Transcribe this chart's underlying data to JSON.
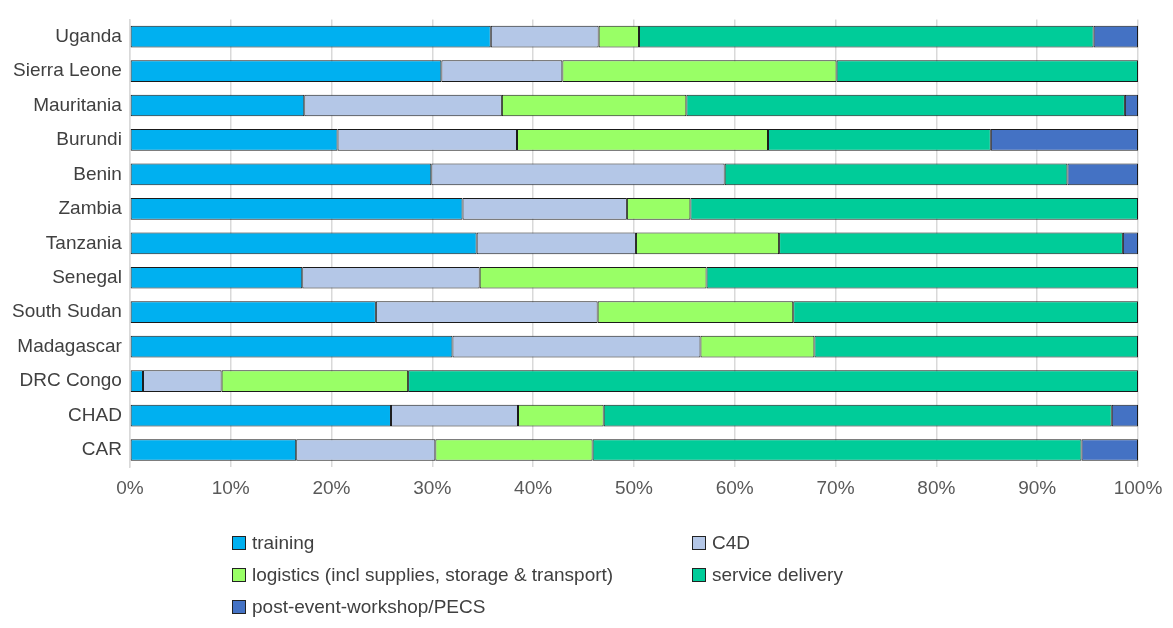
{
  "chart_data": {
    "type": "bar",
    "orientation": "horizontal",
    "stacked": true,
    "categories": [
      "Uganda",
      "Sierra Leone",
      "Mauritania",
      "Burundi",
      "Benin",
      "Zambia",
      "Tanzania",
      "Senegal",
      "South Sudan",
      "Madagascar",
      "DRC Congo",
      "CHAD",
      "CAR"
    ],
    "series": [
      {
        "name": "training",
        "color": "#00b0f0",
        "values": [
          35.8,
          30.9,
          17.3,
          20.6,
          29.9,
          33.0,
          34.4,
          17.1,
          24.4,
          32.0,
          1.3,
          25.9,
          16.5
        ]
      },
      {
        "name": "C4D",
        "color": "#b4c7e7",
        "values": [
          10.7,
          12.0,
          19.6,
          17.8,
          29.1,
          16.3,
          15.8,
          17.6,
          22.0,
          24.6,
          7.8,
          12.6,
          13.8
        ]
      },
      {
        "name": "logistics (incl supplies, storage & transport)",
        "color": "#99ff66",
        "values": [
          4.0,
          27.2,
          18.3,
          24.9,
          0,
          6.3,
          14.2,
          22.5,
          19.4,
          11.3,
          18.5,
          8.5,
          15.6
        ]
      },
      {
        "name": "service delivery",
        "color": "#00cc99",
        "values": [
          45.1,
          29.9,
          43.5,
          22.1,
          34.0,
          44.4,
          34.1,
          42.8,
          34.2,
          32.1,
          72.4,
          50.4,
          48.5
        ]
      },
      {
        "name": "post-event-workshop/PECS",
        "color": "#4472c4",
        "values": [
          4.4,
          0,
          1.3,
          14.6,
          7.0,
          0,
          1.5,
          0,
          0,
          0,
          0,
          2.6,
          5.6
        ]
      }
    ],
    "xlim": [
      0,
      100
    ],
    "xticks": [
      {
        "value": 0,
        "label": "0%"
      },
      {
        "value": 10,
        "label": "10%"
      },
      {
        "value": 20,
        "label": "20%"
      },
      {
        "value": 30,
        "label": "30%"
      },
      {
        "value": 40,
        "label": "40%"
      },
      {
        "value": 50,
        "label": "50%"
      },
      {
        "value": 60,
        "label": "60%"
      },
      {
        "value": 70,
        "label": "70%"
      },
      {
        "value": 80,
        "label": "80%"
      },
      {
        "value": 90,
        "label": "90%"
      },
      {
        "value": 100,
        "label": "100%"
      }
    ],
    "grid": "x",
    "legend": "bottom"
  }
}
